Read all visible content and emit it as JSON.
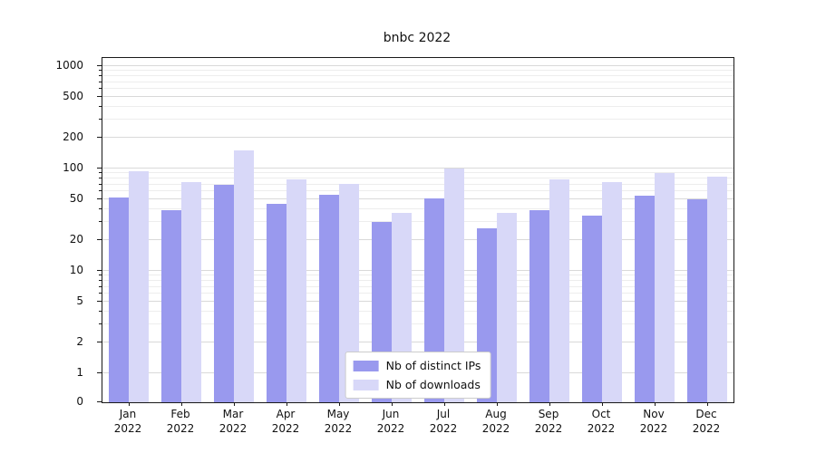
{
  "chart_data": {
    "type": "bar",
    "title": "bnbc 2022",
    "yscale": "symlog",
    "ylim": [
      0,
      1000
    ],
    "yticks": [
      0,
      1,
      2,
      5,
      10,
      20,
      50,
      100,
      200,
      500,
      1000
    ],
    "grid": true,
    "legend_position": "lower center",
    "categories": [
      "Jan 2022",
      "Feb 2022",
      "Mar 2022",
      "Apr 2022",
      "May 2022",
      "Jun 2022",
      "Jul 2022",
      "Aug 2022",
      "Sep 2022",
      "Oct 2022",
      "Nov 2022",
      "Dec 2022"
    ],
    "series": [
      {
        "name": "Nb of distinct IPs",
        "color": "#9999ee",
        "values": [
          52,
          39,
          70,
          45,
          55,
          30,
          51,
          26,
          39,
          35,
          54,
          50
        ]
      },
      {
        "name": "Nb of downloads",
        "color": "#d8d8f8",
        "values": [
          95,
          73,
          150,
          78,
          71,
          37,
          100,
          37,
          78,
          74,
          90,
          84
        ]
      }
    ]
  }
}
